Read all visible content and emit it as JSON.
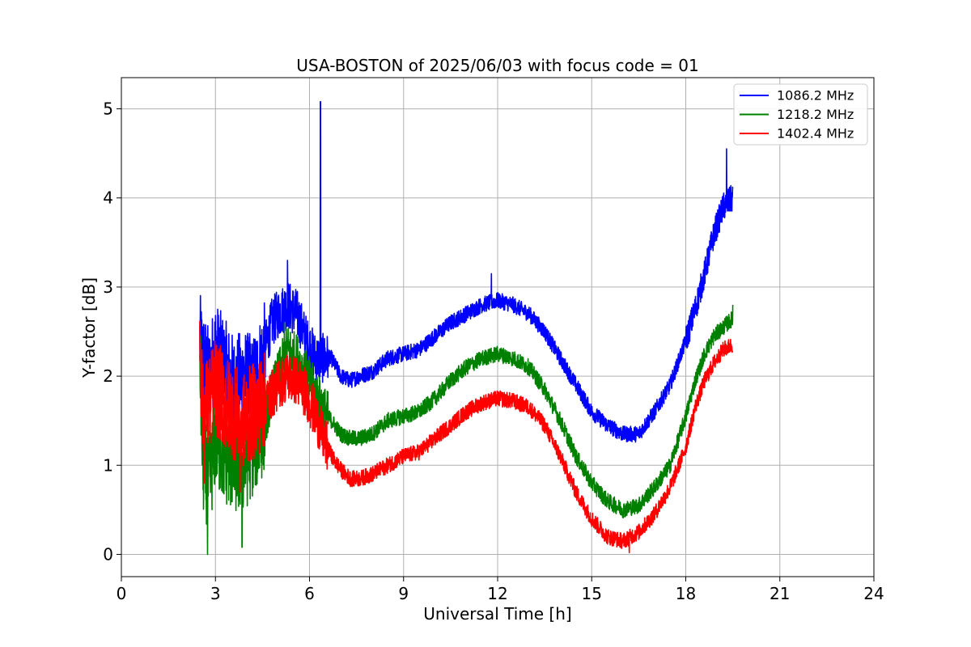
{
  "chart_data": {
    "type": "line",
    "title": "USA-BOSTON of 2025/06/03 with focus code = 01",
    "xlabel": "Universal Time [h]",
    "ylabel": "Y-factor [dB]",
    "xlim": [
      0,
      24
    ],
    "ylim": [
      -0.25,
      5.35
    ],
    "xticks": [
      0,
      3,
      6,
      9,
      12,
      15,
      18,
      21,
      24
    ],
    "yticks": [
      0,
      1,
      2,
      3,
      4,
      5
    ],
    "grid": true,
    "legend_position": "top-right",
    "series": [
      {
        "name": "1086.2 MHz",
        "color": "#0000ff",
        "x": [
          2.5,
          2.6,
          2.8,
          3.0,
          3.3,
          3.6,
          3.9,
          4.2,
          4.5,
          4.8,
          5.0,
          5.3,
          5.6,
          5.9,
          6.2,
          6.4,
          6.7,
          7.0,
          7.3,
          7.6,
          8.0,
          8.5,
          9.0,
          9.5,
          10.0,
          10.5,
          11.0,
          11.5,
          12.0,
          12.5,
          13.0,
          13.5,
          14.0,
          14.5,
          15.0,
          15.5,
          16.0,
          16.5,
          17.0,
          17.5,
          18.0,
          18.3,
          18.6,
          18.9,
          19.2,
          19.5
        ],
        "y": [
          2.4,
          2.2,
          2.0,
          2.3,
          2.1,
          1.9,
          2.0,
          1.9,
          2.2,
          2.6,
          2.7,
          2.8,
          2.7,
          2.4,
          2.2,
          2.2,
          2.2,
          2.0,
          1.95,
          2.0,
          2.05,
          2.2,
          2.25,
          2.3,
          2.45,
          2.6,
          2.7,
          2.8,
          2.85,
          2.8,
          2.7,
          2.5,
          2.2,
          1.9,
          1.6,
          1.45,
          1.35,
          1.35,
          1.6,
          1.9,
          2.4,
          2.75,
          3.15,
          3.6,
          3.9,
          4.0
        ],
        "spikes": [
          {
            "x": 6.35,
            "y": 5.08
          },
          {
            "x": 5.3,
            "y": 3.3
          },
          {
            "x": 11.8,
            "y": 3.15
          },
          {
            "x": 19.3,
            "y": 4.55
          }
        ]
      },
      {
        "name": "1218.2 MHz",
        "color": "#008000",
        "x": [
          2.5,
          2.6,
          2.8,
          3.0,
          3.3,
          3.6,
          3.9,
          4.2,
          4.5,
          4.8,
          5.0,
          5.3,
          5.6,
          5.9,
          6.2,
          6.5,
          6.8,
          7.0,
          7.3,
          7.6,
          8.0,
          8.5,
          9.0,
          9.5,
          10.0,
          10.5,
          11.0,
          11.5,
          12.0,
          12.5,
          13.0,
          13.5,
          14.0,
          14.5,
          15.0,
          15.5,
          16.0,
          16.5,
          17.0,
          17.5,
          18.0,
          18.3,
          18.6,
          18.9,
          19.2,
          19.5
        ],
        "y": [
          2.3,
          1.0,
          0.8,
          1.3,
          1.1,
          1.0,
          1.0,
          1.2,
          1.4,
          1.8,
          2.0,
          2.3,
          2.2,
          2.0,
          1.8,
          1.6,
          1.45,
          1.35,
          1.3,
          1.3,
          1.35,
          1.5,
          1.55,
          1.6,
          1.75,
          1.95,
          2.1,
          2.2,
          2.25,
          2.2,
          2.1,
          1.85,
          1.5,
          1.1,
          0.8,
          0.6,
          0.5,
          0.55,
          0.75,
          1.0,
          1.55,
          1.95,
          2.25,
          2.45,
          2.55,
          2.65
        ],
        "spikes": [
          {
            "x": 2.75,
            "y": 0.0
          },
          {
            "x": 3.85,
            "y": 0.08
          },
          {
            "x": 5.2,
            "y": 2.6
          },
          {
            "x": 19.5,
            "y": 2.8
          }
        ]
      },
      {
        "name": "1402.4 MHz",
        "color": "#ff0000",
        "x": [
          2.5,
          2.6,
          2.8,
          3.0,
          3.3,
          3.6,
          3.9,
          4.2,
          4.5,
          4.8,
          5.0,
          5.3,
          5.6,
          5.9,
          6.2,
          6.5,
          6.8,
          7.0,
          7.3,
          7.6,
          8.0,
          8.5,
          9.0,
          9.5,
          10.0,
          10.5,
          11.0,
          11.5,
          12.0,
          12.5,
          13.0,
          13.5,
          14.0,
          14.5,
          15.0,
          15.5,
          16.0,
          16.5,
          17.0,
          17.5,
          18.0,
          18.3,
          18.6,
          18.9,
          19.2,
          19.5
        ],
        "y": [
          2.5,
          1.6,
          1.7,
          1.9,
          1.7,
          1.6,
          1.5,
          1.6,
          1.7,
          1.8,
          1.9,
          2.0,
          1.95,
          1.8,
          1.55,
          1.25,
          1.05,
          0.95,
          0.85,
          0.85,
          0.9,
          1.0,
          1.1,
          1.15,
          1.3,
          1.45,
          1.6,
          1.7,
          1.75,
          1.72,
          1.65,
          1.45,
          1.1,
          0.7,
          0.4,
          0.2,
          0.15,
          0.25,
          0.45,
          0.75,
          1.2,
          1.65,
          1.95,
          2.15,
          2.3,
          2.35
        ],
        "spikes": [
          {
            "x": 2.5,
            "y": 2.62
          },
          {
            "x": 2.65,
            "y": 0.8
          },
          {
            "x": 3.8,
            "y": 0.7
          },
          {
            "x": 16.2,
            "y": 0.02
          }
        ]
      }
    ]
  }
}
